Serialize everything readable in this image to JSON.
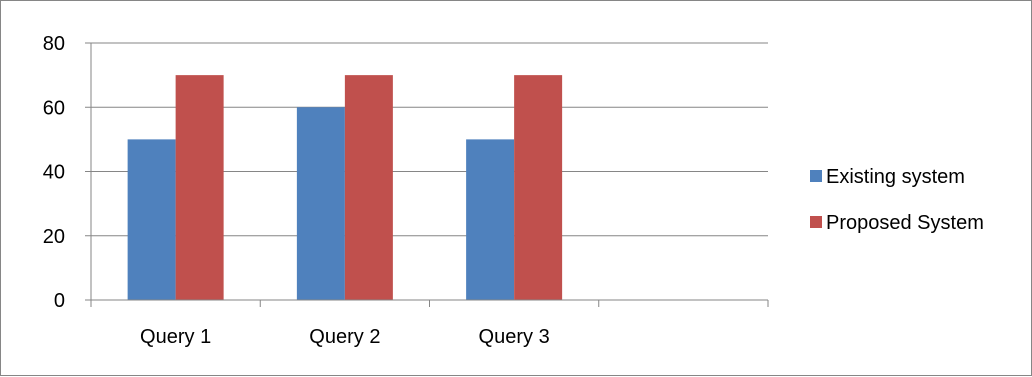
{
  "chart_data": {
    "type": "bar",
    "title": "",
    "xlabel": "",
    "ylabel": "",
    "categories": [
      "Query 1",
      "Query 2",
      "Query 3",
      ""
    ],
    "series": [
      {
        "name": "Existing system",
        "values": [
          50,
          60,
          50,
          null
        ],
        "color": "#4F81BD"
      },
      {
        "name": "Proposed System",
        "values": [
          70,
          70,
          70,
          null
        ],
        "color": "#C0504D"
      }
    ],
    "ylim": [
      0,
      80
    ],
    "yticks": [
      0,
      20,
      40,
      60,
      80
    ],
    "grid": true,
    "legend": "right"
  }
}
